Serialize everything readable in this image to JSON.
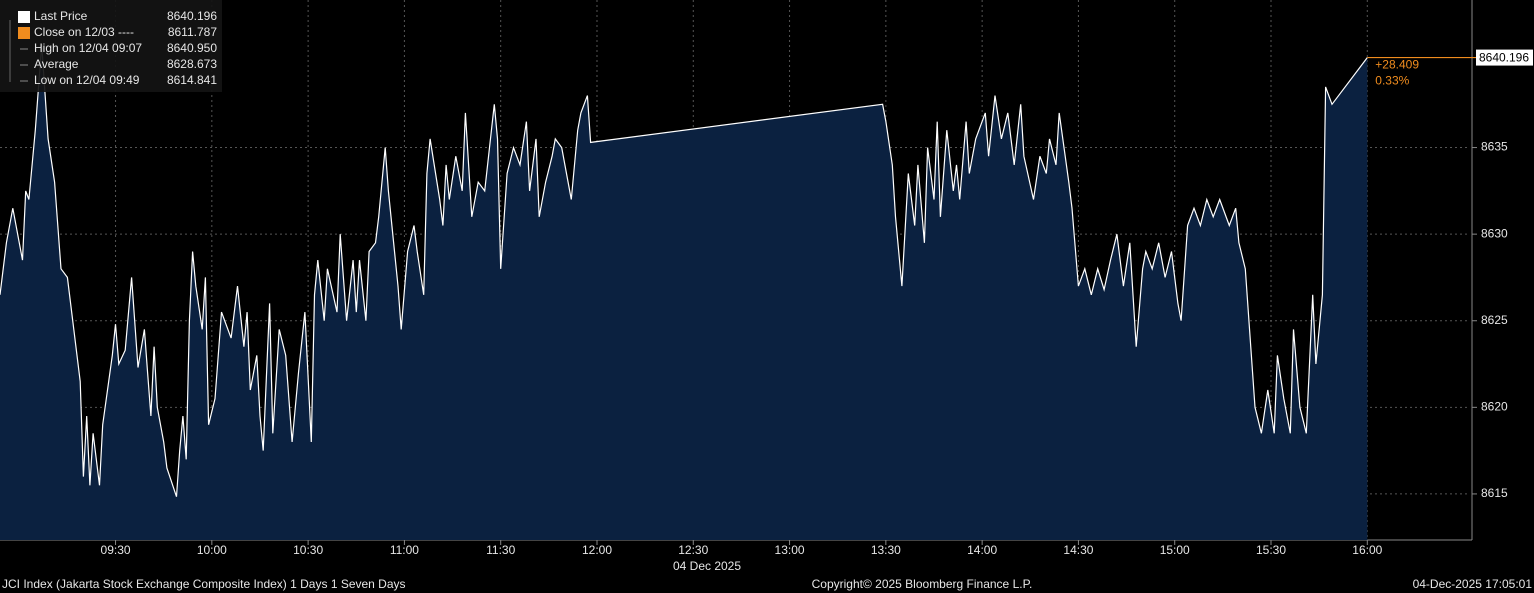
{
  "chart_data": {
    "type": "area",
    "x_label": "04 Dec 2025",
    "x": [
      "08:54",
      "08:56",
      "08:58",
      "09:01",
      "09:02",
      "09:03",
      "09:05",
      "09:07",
      "09:09",
      "09:11",
      "09:12",
      "09:13",
      "09:15",
      "09:17",
      "09:19",
      "09:20",
      "09:21",
      "09:22",
      "09:23",
      "09:25",
      "09:26",
      "09:29",
      "09:30",
      "09:31",
      "09:33",
      "09:35",
      "09:37",
      "09:39",
      "09:40",
      "09:41",
      "09:42",
      "09:43",
      "09:45",
      "09:46",
      "09:49",
      "09:50",
      "09:51",
      "09:52",
      "09:53",
      "09:54",
      "09:55",
      "09:57",
      "09:58",
      "09:59",
      "10:01",
      "10:03",
      "10:05",
      "10:06",
      "10:08",
      "10:10",
      "10:11",
      "10:12",
      "10:14",
      "10:15",
      "10:16",
      "10:18",
      "10:19",
      "10:21",
      "10:23",
      "10:25",
      "10:27",
      "10:29",
      "10:31",
      "10:32",
      "10:33",
      "10:35",
      "10:36",
      "10:39",
      "10:40",
      "10:42",
      "10:44",
      "10:45",
      "10:46",
      "10:48",
      "10:49",
      "10:51",
      "10:52",
      "10:54",
      "10:55",
      "10:58",
      "10:59",
      "11:01",
      "11:03",
      "11:04",
      "11:06",
      "11:07",
      "11:08",
      "11:11",
      "11:12",
      "11:13",
      "11:14",
      "11:16",
      "11:18",
      "11:19",
      "11:21",
      "11:23",
      "11:25",
      "11:28",
      "11:29",
      "11:30",
      "11:32",
      "11:34",
      "11:36",
      "11:38",
      "11:39",
      "11:41",
      "11:42",
      "11:44",
      "11:46",
      "11:47",
      "11:49",
      "11:52",
      "11:54",
      "11:55",
      "11:57",
      "11:58",
      "13:29",
      "13:30",
      "13:32",
      "13:33",
      "13:35",
      "13:37",
      "13:39",
      "13:40",
      "13:42",
      "13:43",
      "13:45",
      "13:46",
      "13:47",
      "13:49",
      "13:51",
      "13:52",
      "13:53",
      "13:55",
      "13:56",
      "13:58",
      "14:01",
      "14:02",
      "14:04",
      "14:06",
      "14:08",
      "14:10",
      "14:12",
      "14:13",
      "14:16",
      "14:18",
      "14:20",
      "14:21",
      "14:23",
      "14:24",
      "14:27",
      "14:28",
      "14:30",
      "14:32",
      "14:34",
      "14:36",
      "14:38",
      "14:40",
      "14:42",
      "14:44",
      "14:46",
      "14:48",
      "14:50",
      "14:51",
      "14:53",
      "14:55",
      "14:57",
      "14:59",
      "15:01",
      "15:02",
      "15:04",
      "15:06",
      "15:08",
      "15:10",
      "15:12",
      "15:14",
      "15:17",
      "15:19",
      "15:20",
      "15:22",
      "15:25",
      "15:27",
      "15:29",
      "15:31",
      "15:32",
      "15:34",
      "15:36",
      "15:37",
      "15:39",
      "15:41",
      "15:43",
      "15:44",
      "15:46",
      "15:47",
      "15:49",
      "16:00"
    ],
    "series": [
      {
        "name": "Last Price",
        "color": "#ffffff",
        "fill": "#0b2140",
        "values": [
          8626.5,
          8629.5,
          8631.5,
          8628.5,
          8632.5,
          8632.0,
          8636.0,
          8640.95,
          8635.5,
          8633.0,
          8630.5,
          8628.0,
          8627.5,
          8624.5,
          8621.5,
          8616.0,
          8619.5,
          8615.5,
          8618.5,
          8615.5,
          8619.0,
          8623.0,
          8624.8,
          8622.5,
          8623.3,
          8627.5,
          8622.3,
          8624.5,
          8622.0,
          8619.5,
          8623.5,
          8620.0,
          8618.0,
          8616.5,
          8614.841,
          8617.5,
          8619.5,
          8617.0,
          8625.0,
          8629.0,
          8627.0,
          8624.5,
          8627.5,
          8619.0,
          8620.5,
          8625.5,
          8624.5,
          8624.0,
          8627.0,
          8623.5,
          8625.5,
          8621.0,
          8623.0,
          8619.5,
          8617.5,
          8626.0,
          8618.5,
          8624.5,
          8623.0,
          8618.0,
          8622.0,
          8625.5,
          8618.0,
          8626.5,
          8628.5,
          8625.0,
          8628.0,
          8625.5,
          8630.0,
          8625.0,
          8628.5,
          8625.5,
          8628.5,
          8625.0,
          8629.0,
          8629.5,
          8631.0,
          8635.0,
          8632.5,
          8627.0,
          8624.5,
          8629.0,
          8630.5,
          8629.0,
          8626.5,
          8633.5,
          8635.5,
          8632.0,
          8630.5,
          8634.0,
          8632.0,
          8634.5,
          8632.5,
          8637.0,
          8631.0,
          8633.0,
          8632.5,
          8637.5,
          8635.5,
          8628.0,
          8633.5,
          8635.0,
          8634.0,
          8636.5,
          8632.5,
          8635.5,
          8631.0,
          8633.0,
          8634.5,
          8635.5,
          8635.0,
          8632.0,
          8636.0,
          8637.0,
          8638.0,
          8635.3,
          8637.5,
          8636.5,
          8634.0,
          8631.0,
          8627.0,
          8633.5,
          8630.5,
          8634.0,
          8629.5,
          8635.0,
          8632.0,
          8636.5,
          8631.0,
          8636.0,
          8632.5,
          8634.0,
          8632.0,
          8636.5,
          8633.5,
          8635.5,
          8637.0,
          8634.5,
          8638.0,
          8635.5,
          8637.0,
          8634.0,
          8637.5,
          8634.5,
          8632.0,
          8634.5,
          8633.5,
          8635.5,
          8634.0,
          8637.0,
          8633.0,
          8631.5,
          8627.0,
          8628.0,
          8626.5,
          8628.0,
          8626.8,
          8628.5,
          8630.0,
          8627.0,
          8629.5,
          8623.5,
          8628.0,
          8629.0,
          8628.0,
          8629.5,
          8627.5,
          8629.0,
          8626.0,
          8625.0,
          8630.5,
          8631.5,
          8630.5,
          8632.0,
          8631.0,
          8632.0,
          8630.5,
          8631.5,
          8629.5,
          8628.0,
          8620.0,
          8618.5,
          8621.0,
          8618.5,
          8623.0,
          8620.5,
          8618.5,
          8624.5,
          8620.0,
          8618.5,
          8626.5,
          8622.5,
          8626.5,
          8638.5,
          8637.5,
          8640.196
        ]
      }
    ],
    "xlim": [
      "08:54",
      "16:32"
    ],
    "xticks": [
      "09:30",
      "10:00",
      "10:30",
      "11:00",
      "11:30",
      "12:00",
      "12:30",
      "13:00",
      "13:30",
      "14:00",
      "14:30",
      "15:00",
      "15:30",
      "16:00"
    ],
    "ylim": [
      8612.34,
      8643.52
    ],
    "yticks": [
      8615,
      8620,
      8625,
      8630,
      8635
    ],
    "grid": true,
    "marker_color": "#f08c1e",
    "annotations": [
      "+28.409",
      "0.33%"
    ],
    "legend": [
      {
        "name": "Last Price",
        "value": 8640.196
      },
      {
        "name": "Close on 12/03 ----",
        "value": 8611.787
      },
      {
        "name": "High on 12/04 09:07",
        "value": 8640.95,
        "value_label": "8640.950"
      },
      {
        "name": "Average",
        "value": 8628.673
      },
      {
        "name": "Low on 12/04 09:49",
        "value": 8614.841
      }
    ]
  },
  "footer": {
    "left": "JCI Index (Jakarta Stock Exchange Composite Index) 1 Days 1 Seven Days",
    "center": "Copyright© 2025 Bloomberg Finance L.P.",
    "right": "04-Dec-2025 17:05:01"
  }
}
